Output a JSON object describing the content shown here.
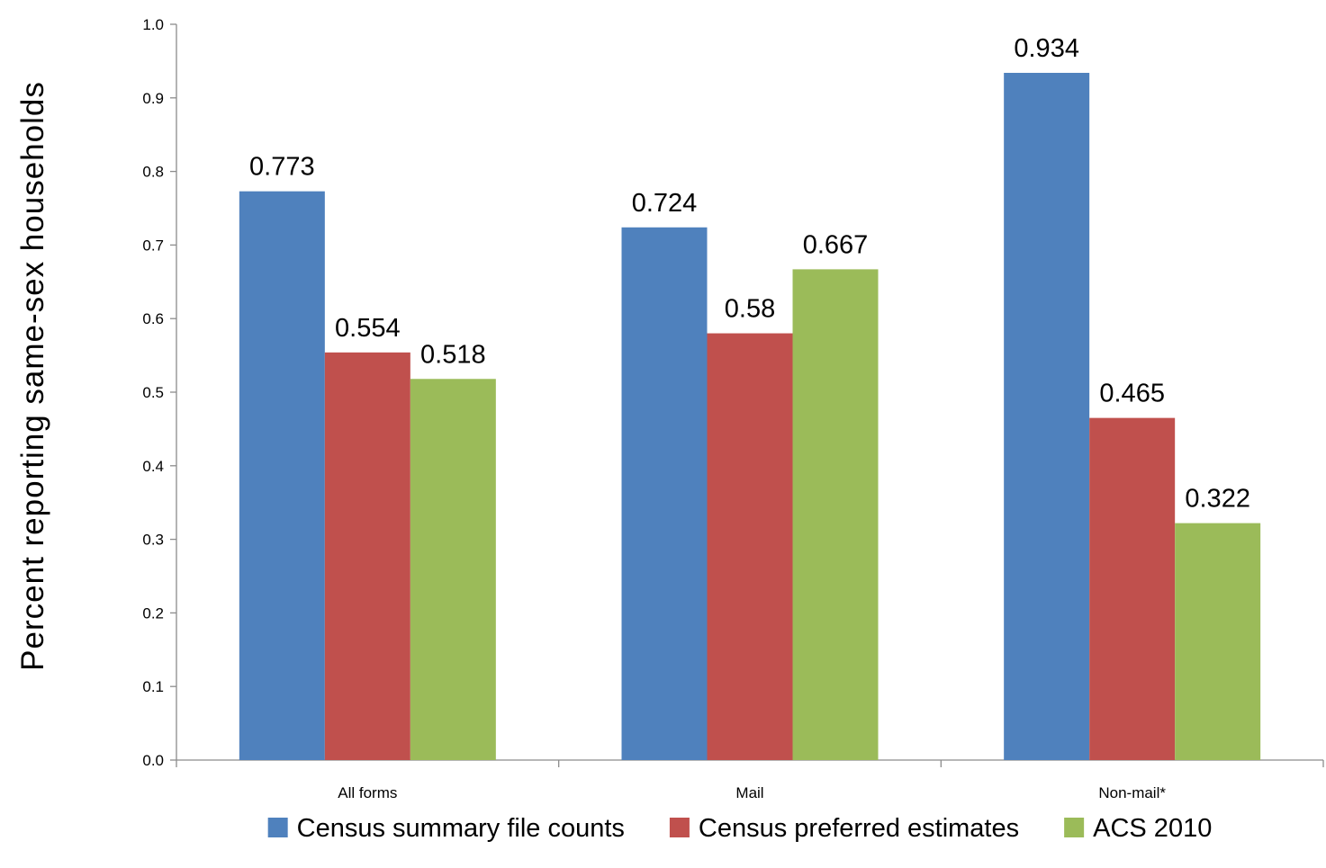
{
  "chart_data": {
    "type": "bar",
    "title": "",
    "xlabel": "",
    "ylabel": "Percent  reporting  same-sex  households",
    "ylim": [
      0,
      1.0
    ],
    "ytick_step": 0.1,
    "ytick_labels": [
      "0.0",
      "0.1",
      "0.2",
      "0.3",
      "0.4",
      "0.5",
      "0.6",
      "0.7",
      "0.8",
      "0.9",
      "1.0"
    ],
    "categories": [
      "All forms",
      "Mail",
      "Non-mail*"
    ],
    "series": [
      {
        "name": "Census summary file counts",
        "color": "#4F81BD",
        "values": [
          0.773,
          0.724,
          0.934
        ],
        "labels": [
          "0.773",
          "0.724",
          "0.934"
        ]
      },
      {
        "name": "Census preferred estimates",
        "color": "#C0504D",
        "values": [
          0.554,
          0.58,
          0.465
        ],
        "labels": [
          "0.554",
          "0.58",
          "0.465"
        ]
      },
      {
        "name": "ACS 2010",
        "color": "#9BBB59",
        "values": [
          0.518,
          0.667,
          0.322
        ],
        "labels": [
          "0.518",
          "0.667",
          "0.322"
        ]
      }
    ],
    "grid": false,
    "legend_position": "bottom"
  }
}
